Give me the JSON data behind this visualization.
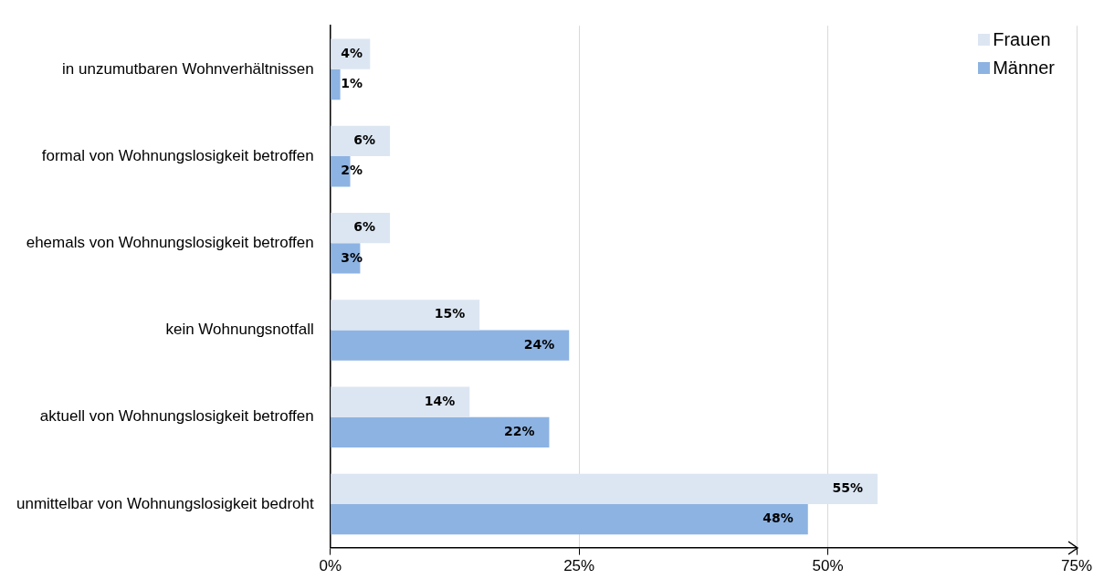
{
  "chart_data": {
    "type": "bar",
    "orientation": "horizontal",
    "categories": [
      "in unzumutbaren Wohnverhältnissen",
      "formal von Wohnungslosigkeit betroffen",
      "ehemals von Wohnungslosigkeit betroffen",
      "kein Wohnungsnotfall",
      "aktuell von Wohnungslosigkeit betroffen",
      "unmittelbar von Wohnungslosigkeit bedroht"
    ],
    "series": [
      {
        "name": "Frauen",
        "color": "#dce6f2",
        "values": [
          4,
          6,
          6,
          15,
          14,
          55
        ],
        "value_labels": [
          "4%",
          "6%",
          "6%",
          "15%",
          "14%",
          "55%"
        ]
      },
      {
        "name": "Männer",
        "color": "#8db3e2",
        "values": [
          1,
          2,
          3,
          24,
          22,
          48
        ],
        "value_labels": [
          "1%",
          "2%",
          "3%",
          "24%",
          "22%",
          "48%"
        ]
      }
    ],
    "xlim": [
      0,
      75
    ],
    "xticks": [
      {
        "value": 0,
        "label": "0%"
      },
      {
        "value": 25,
        "label": "25%"
      },
      {
        "value": 50,
        "label": "50%"
      },
      {
        "value": 75,
        "label": "75%"
      }
    ],
    "grid": "x",
    "legend": "top right"
  }
}
